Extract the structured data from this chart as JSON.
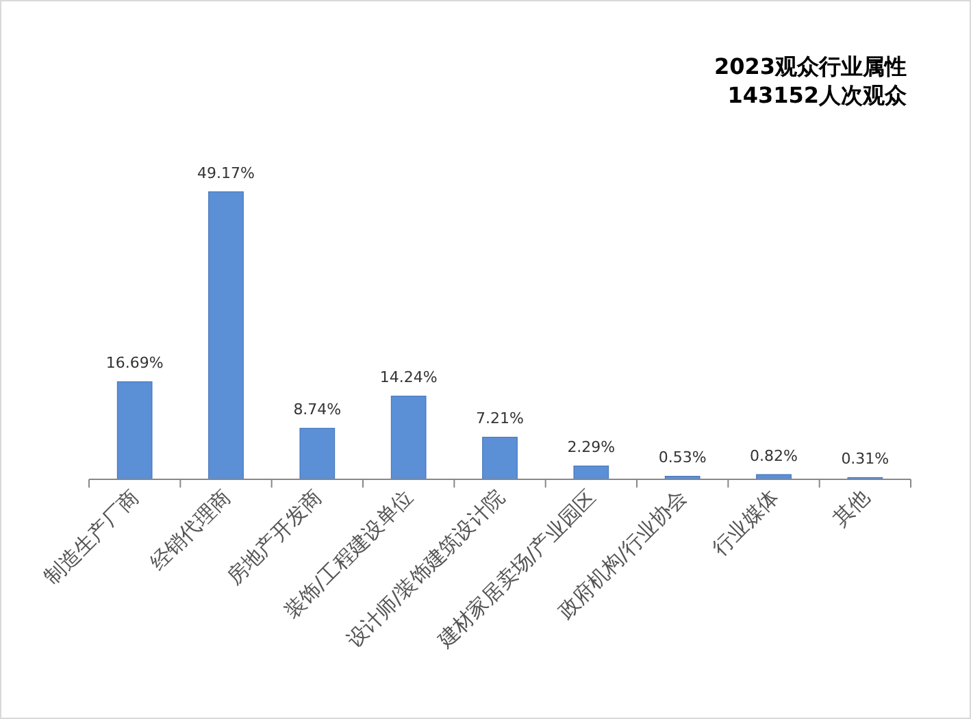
{
  "chart_data": {
    "type": "bar",
    "title": "2023观众行业属性",
    "subtitle": "143152人次观众",
    "categories": [
      "制造生产厂商",
      "经销代理商",
      "房地产开发商",
      "装饰/工程建设单位",
      "设计师/装饰建筑设计院",
      "建材家居卖场/产业园区",
      "政府机构/行业协会",
      "行业媒体",
      "其他"
    ],
    "values": [
      16.69,
      49.17,
      8.74,
      14.24,
      7.21,
      2.29,
      0.53,
      0.82,
      0.31
    ],
    "value_labels": [
      "16.69%",
      "49.17%",
      "8.74%",
      "14.24%",
      "7.21%",
      "2.29%",
      "0.53%",
      "0.82%",
      "0.31%"
    ],
    "color": "#5b8fd6"
  }
}
